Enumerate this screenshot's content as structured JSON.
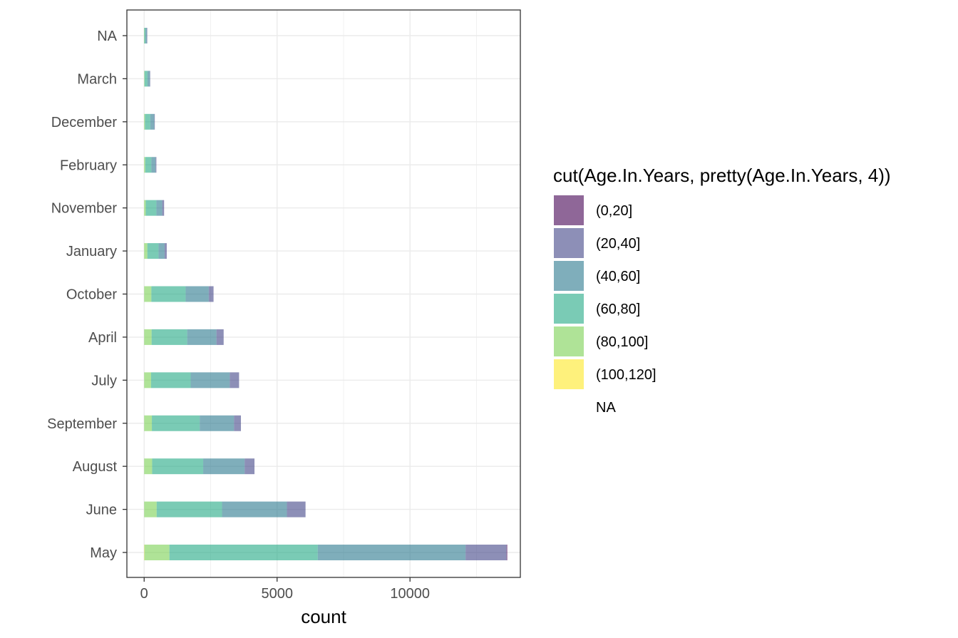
{
  "chart_data": {
    "type": "bar",
    "orientation": "horizontal",
    "stacked": true,
    "xlabel": "count",
    "ylabel": "",
    "xlim": [
      -650,
      14150
    ],
    "x_ticks": [
      0,
      5000,
      10000
    ],
    "x_tick_labels": [
      "0",
      "5000",
      "10000"
    ],
    "grid": true,
    "categories": [
      "NA",
      "March",
      "December",
      "February",
      "November",
      "January",
      "October",
      "April",
      "July",
      "September",
      "August",
      "June",
      "May"
    ],
    "legend": {
      "title": "cut(Age.In.Years, pretty(Age.In.Years, 4))",
      "placement": "right",
      "entries": [
        {
          "label": "(0,20]",
          "color": "#440154"
        },
        {
          "label": "(20,40]",
          "color": "#414487"
        },
        {
          "label": "(40,60]",
          "color": "#2a788e"
        },
        {
          "label": "(60,80]",
          "color": "#22a884"
        },
        {
          "label": "(80,100]",
          "color": "#7ad151"
        },
        {
          "label": "(100,120]",
          "color": "#fde725"
        },
        {
          "label": "NA",
          "color": "#808080"
        }
      ]
    },
    "series": [
      {
        "name": "(100,120]",
        "color": "#fde725",
        "values": [
          0,
          0,
          0,
          0,
          0,
          0,
          0,
          0,
          0,
          0,
          0,
          0,
          10
        ]
      },
      {
        "name": "(80,100]",
        "color": "#7ad151",
        "values": [
          5,
          15,
          30,
          40,
          60,
          120,
          270,
          280,
          260,
          290,
          300,
          470,
          940
        ]
      },
      {
        "name": "(60,80]",
        "color": "#22a884",
        "values": [
          40,
          110,
          200,
          230,
          400,
          420,
          1290,
          1340,
          1490,
          1800,
          1920,
          2460,
          5580
        ]
      },
      {
        "name": "(40,60]",
        "color": "#2a788e",
        "values": [
          60,
          90,
          150,
          160,
          220,
          230,
          870,
          1100,
          1470,
          1290,
          1560,
          2440,
          5560
        ]
      },
      {
        "name": "(20,40]",
        "color": "#414487",
        "values": [
          5,
          10,
          20,
          30,
          70,
          80,
          180,
          270,
          350,
          260,
          370,
          700,
          1540
        ]
      },
      {
        "name": "(0,20]",
        "color": "#440154",
        "values": [
          0,
          0,
          0,
          0,
          0,
          0,
          0,
          0,
          0,
          0,
          0,
          0,
          30
        ]
      }
    ]
  }
}
